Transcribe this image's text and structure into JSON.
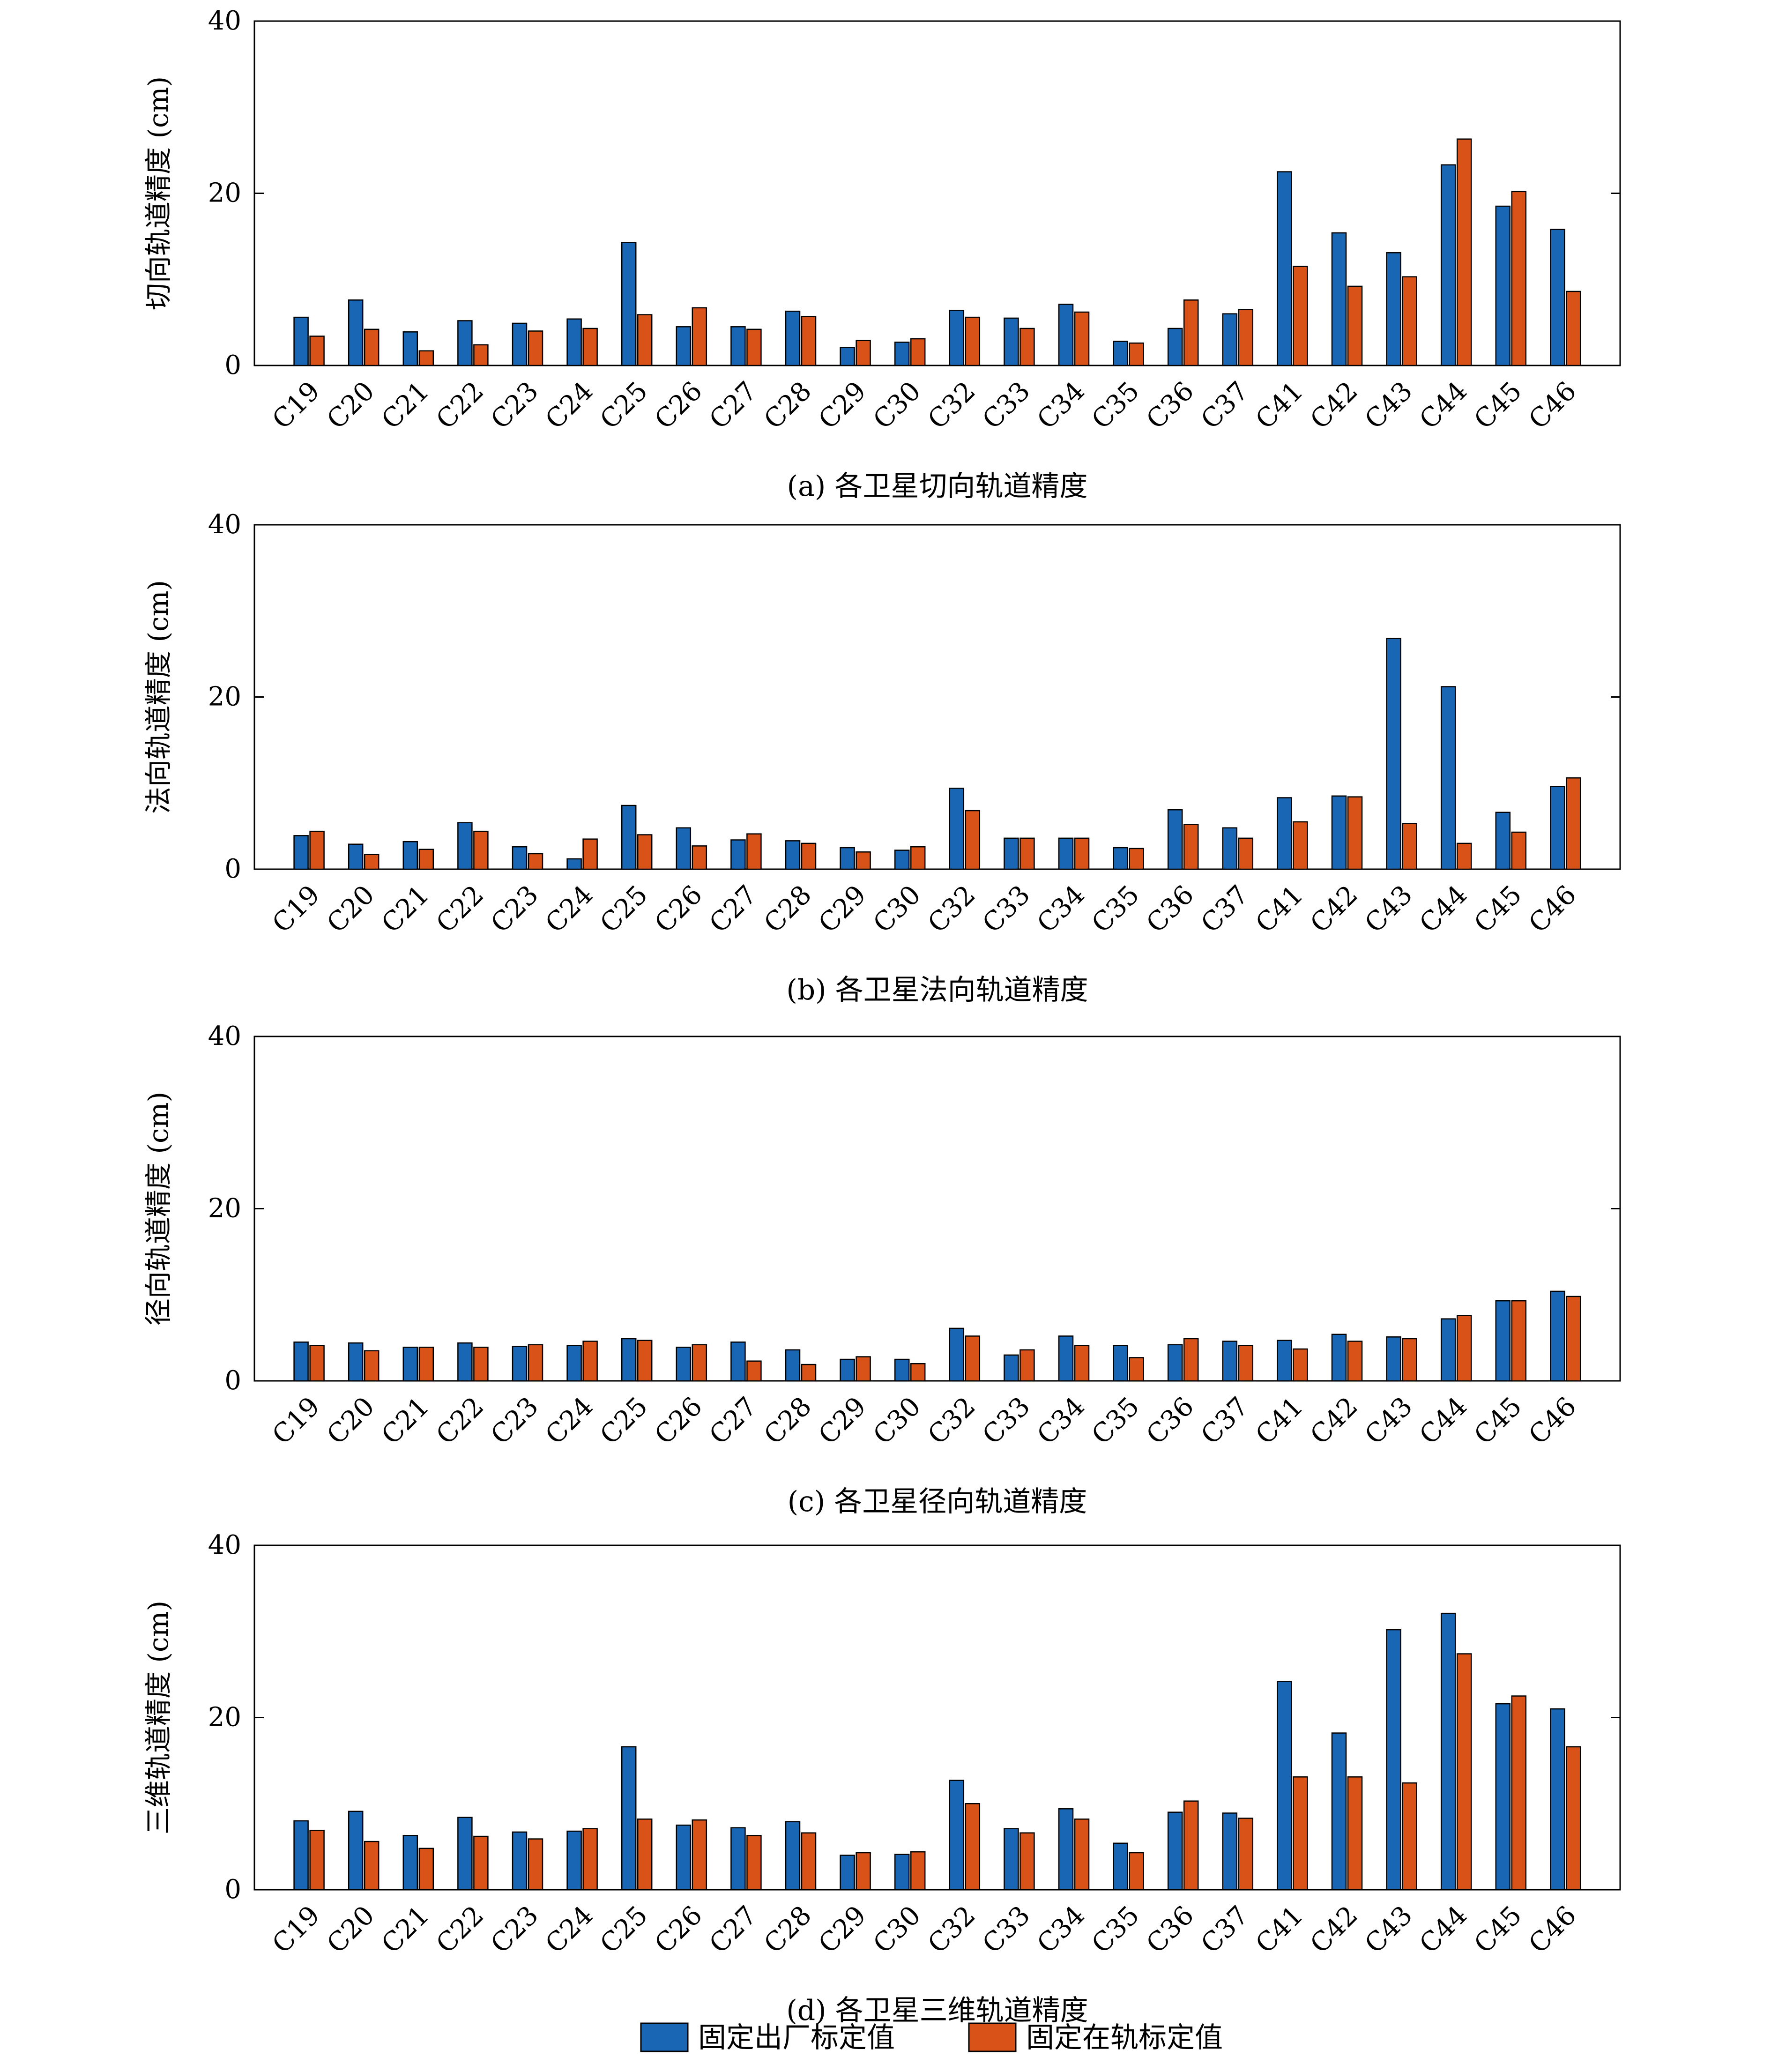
{
  "legend": {
    "position": "bottom-center",
    "items": [
      {
        "label": "固定出厂标定值",
        "color": "#1866B4"
      },
      {
        "label": "固定在轨标定值",
        "color": "#D95319"
      }
    ]
  },
  "chart_data": [
    {
      "type": "bar",
      "caption": "(a) 各卫星切向轨道精度",
      "title": "",
      "xlabel": "",
      "ylabel": "切向轨道精度 (cm)",
      "ylim": [
        0,
        40
      ],
      "yticks": [
        0,
        20,
        40
      ],
      "grid": false,
      "categories": [
        "C19",
        "C20",
        "C21",
        "C22",
        "C23",
        "C24",
        "C25",
        "C26",
        "C27",
        "C28",
        "C29",
        "C30",
        "C32",
        "C33",
        "C34",
        "C35",
        "C36",
        "C37",
        "C41",
        "C42",
        "C43",
        "C44",
        "C45",
        "C46"
      ],
      "series": [
        {
          "name": "固定出厂标定值",
          "values": [
            5.6,
            7.6,
            3.9,
            5.2,
            4.9,
            5.4,
            14.3,
            4.5,
            4.5,
            6.3,
            2.1,
            2.7,
            6.4,
            5.5,
            7.1,
            2.8,
            4.3,
            6.0,
            22.5,
            15.4,
            13.1,
            23.3,
            18.5,
            15.8
          ]
        },
        {
          "name": "固定在轨标定值",
          "values": [
            3.4,
            4.2,
            1.7,
            2.4,
            4.0,
            4.3,
            5.9,
            6.7,
            4.2,
            5.7,
            2.9,
            3.1,
            5.6,
            4.3,
            6.2,
            2.6,
            7.6,
            6.5,
            11.5,
            9.2,
            10.3,
            26.3,
            20.2,
            8.6
          ]
        }
      ]
    },
    {
      "type": "bar",
      "caption": "(b) 各卫星法向轨道精度",
      "title": "",
      "xlabel": "",
      "ylabel": "法向轨道精度 (cm)",
      "ylim": [
        0,
        40
      ],
      "yticks": [
        0,
        20,
        40
      ],
      "grid": false,
      "categories": [
        "C19",
        "C20",
        "C21",
        "C22",
        "C23",
        "C24",
        "C25",
        "C26",
        "C27",
        "C28",
        "C29",
        "C30",
        "C32",
        "C33",
        "C34",
        "C35",
        "C36",
        "C37",
        "C41",
        "C42",
        "C43",
        "C44",
        "C45",
        "C46"
      ],
      "series": [
        {
          "name": "固定出厂标定值",
          "values": [
            3.9,
            2.9,
            3.2,
            5.4,
            2.6,
            1.2,
            7.4,
            4.8,
            3.4,
            3.3,
            2.5,
            2.2,
            9.4,
            3.6,
            3.6,
            2.5,
            6.9,
            4.8,
            8.3,
            8.5,
            26.8,
            21.2,
            6.6,
            9.6
          ]
        },
        {
          "name": "固定在轨标定值",
          "values": [
            4.4,
            1.7,
            2.3,
            4.4,
            1.8,
            3.5,
            4.0,
            2.7,
            4.1,
            3.0,
            2.0,
            2.6,
            6.8,
            3.6,
            3.6,
            2.4,
            5.2,
            3.6,
            5.5,
            8.4,
            5.3,
            3.0,
            4.3,
            10.6
          ]
        }
      ]
    },
    {
      "type": "bar",
      "caption": "(c) 各卫星径向轨道精度",
      "title": "",
      "xlabel": "",
      "ylabel": "径向轨道精度 (cm)",
      "ylim": [
        0,
        40
      ],
      "yticks": [
        0,
        20,
        40
      ],
      "grid": false,
      "categories": [
        "C19",
        "C20",
        "C21",
        "C22",
        "C23",
        "C24",
        "C25",
        "C26",
        "C27",
        "C28",
        "C29",
        "C30",
        "C32",
        "C33",
        "C34",
        "C35",
        "C36",
        "C37",
        "C41",
        "C42",
        "C43",
        "C44",
        "C45",
        "C46"
      ],
      "series": [
        {
          "name": "固定出厂标定值",
          "values": [
            4.5,
            4.4,
            3.9,
            4.4,
            4.0,
            4.1,
            4.9,
            3.9,
            4.5,
            3.6,
            2.5,
            2.5,
            6.1,
            3.0,
            5.2,
            4.1,
            4.2,
            4.6,
            4.7,
            5.4,
            5.1,
            7.2,
            9.3,
            10.4
          ]
        },
        {
          "name": "固定在轨标定值",
          "values": [
            4.1,
            3.5,
            3.9,
            3.9,
            4.2,
            4.6,
            4.7,
            4.2,
            2.3,
            1.9,
            2.8,
            2.0,
            5.2,
            3.6,
            4.1,
            2.7,
            4.9,
            4.1,
            3.7,
            4.6,
            4.9,
            7.6,
            9.3,
            9.8
          ]
        }
      ]
    },
    {
      "type": "bar",
      "caption": "(d) 各卫星三维轨道精度",
      "title": "",
      "xlabel": "",
      "ylabel": "三维轨道精度 (cm)",
      "ylim": [
        0,
        40
      ],
      "yticks": [
        0,
        20,
        40
      ],
      "grid": false,
      "categories": [
        "C19",
        "C20",
        "C21",
        "C22",
        "C23",
        "C24",
        "C25",
        "C26",
        "C27",
        "C28",
        "C29",
        "C30",
        "C32",
        "C33",
        "C34",
        "C35",
        "C36",
        "C37",
        "C41",
        "C42",
        "C43",
        "C44",
        "C45",
        "C46"
      ],
      "series": [
        {
          "name": "固定出厂标定值",
          "values": [
            8.0,
            9.1,
            6.3,
            8.4,
            6.7,
            6.8,
            16.6,
            7.5,
            7.2,
            7.9,
            4.0,
            4.1,
            12.7,
            7.1,
            9.4,
            5.4,
            9.0,
            8.9,
            24.2,
            18.2,
            30.2,
            32.1,
            21.6,
            21.0
          ]
        },
        {
          "name": "固定在轨标定值",
          "values": [
            6.9,
            5.6,
            4.8,
            6.2,
            5.9,
            7.1,
            8.2,
            8.1,
            6.3,
            6.6,
            4.3,
            4.4,
            10.0,
            6.6,
            8.2,
            4.3,
            10.3,
            8.3,
            13.1,
            13.1,
            12.4,
            27.4,
            22.5,
            16.6
          ]
        }
      ]
    }
  ]
}
